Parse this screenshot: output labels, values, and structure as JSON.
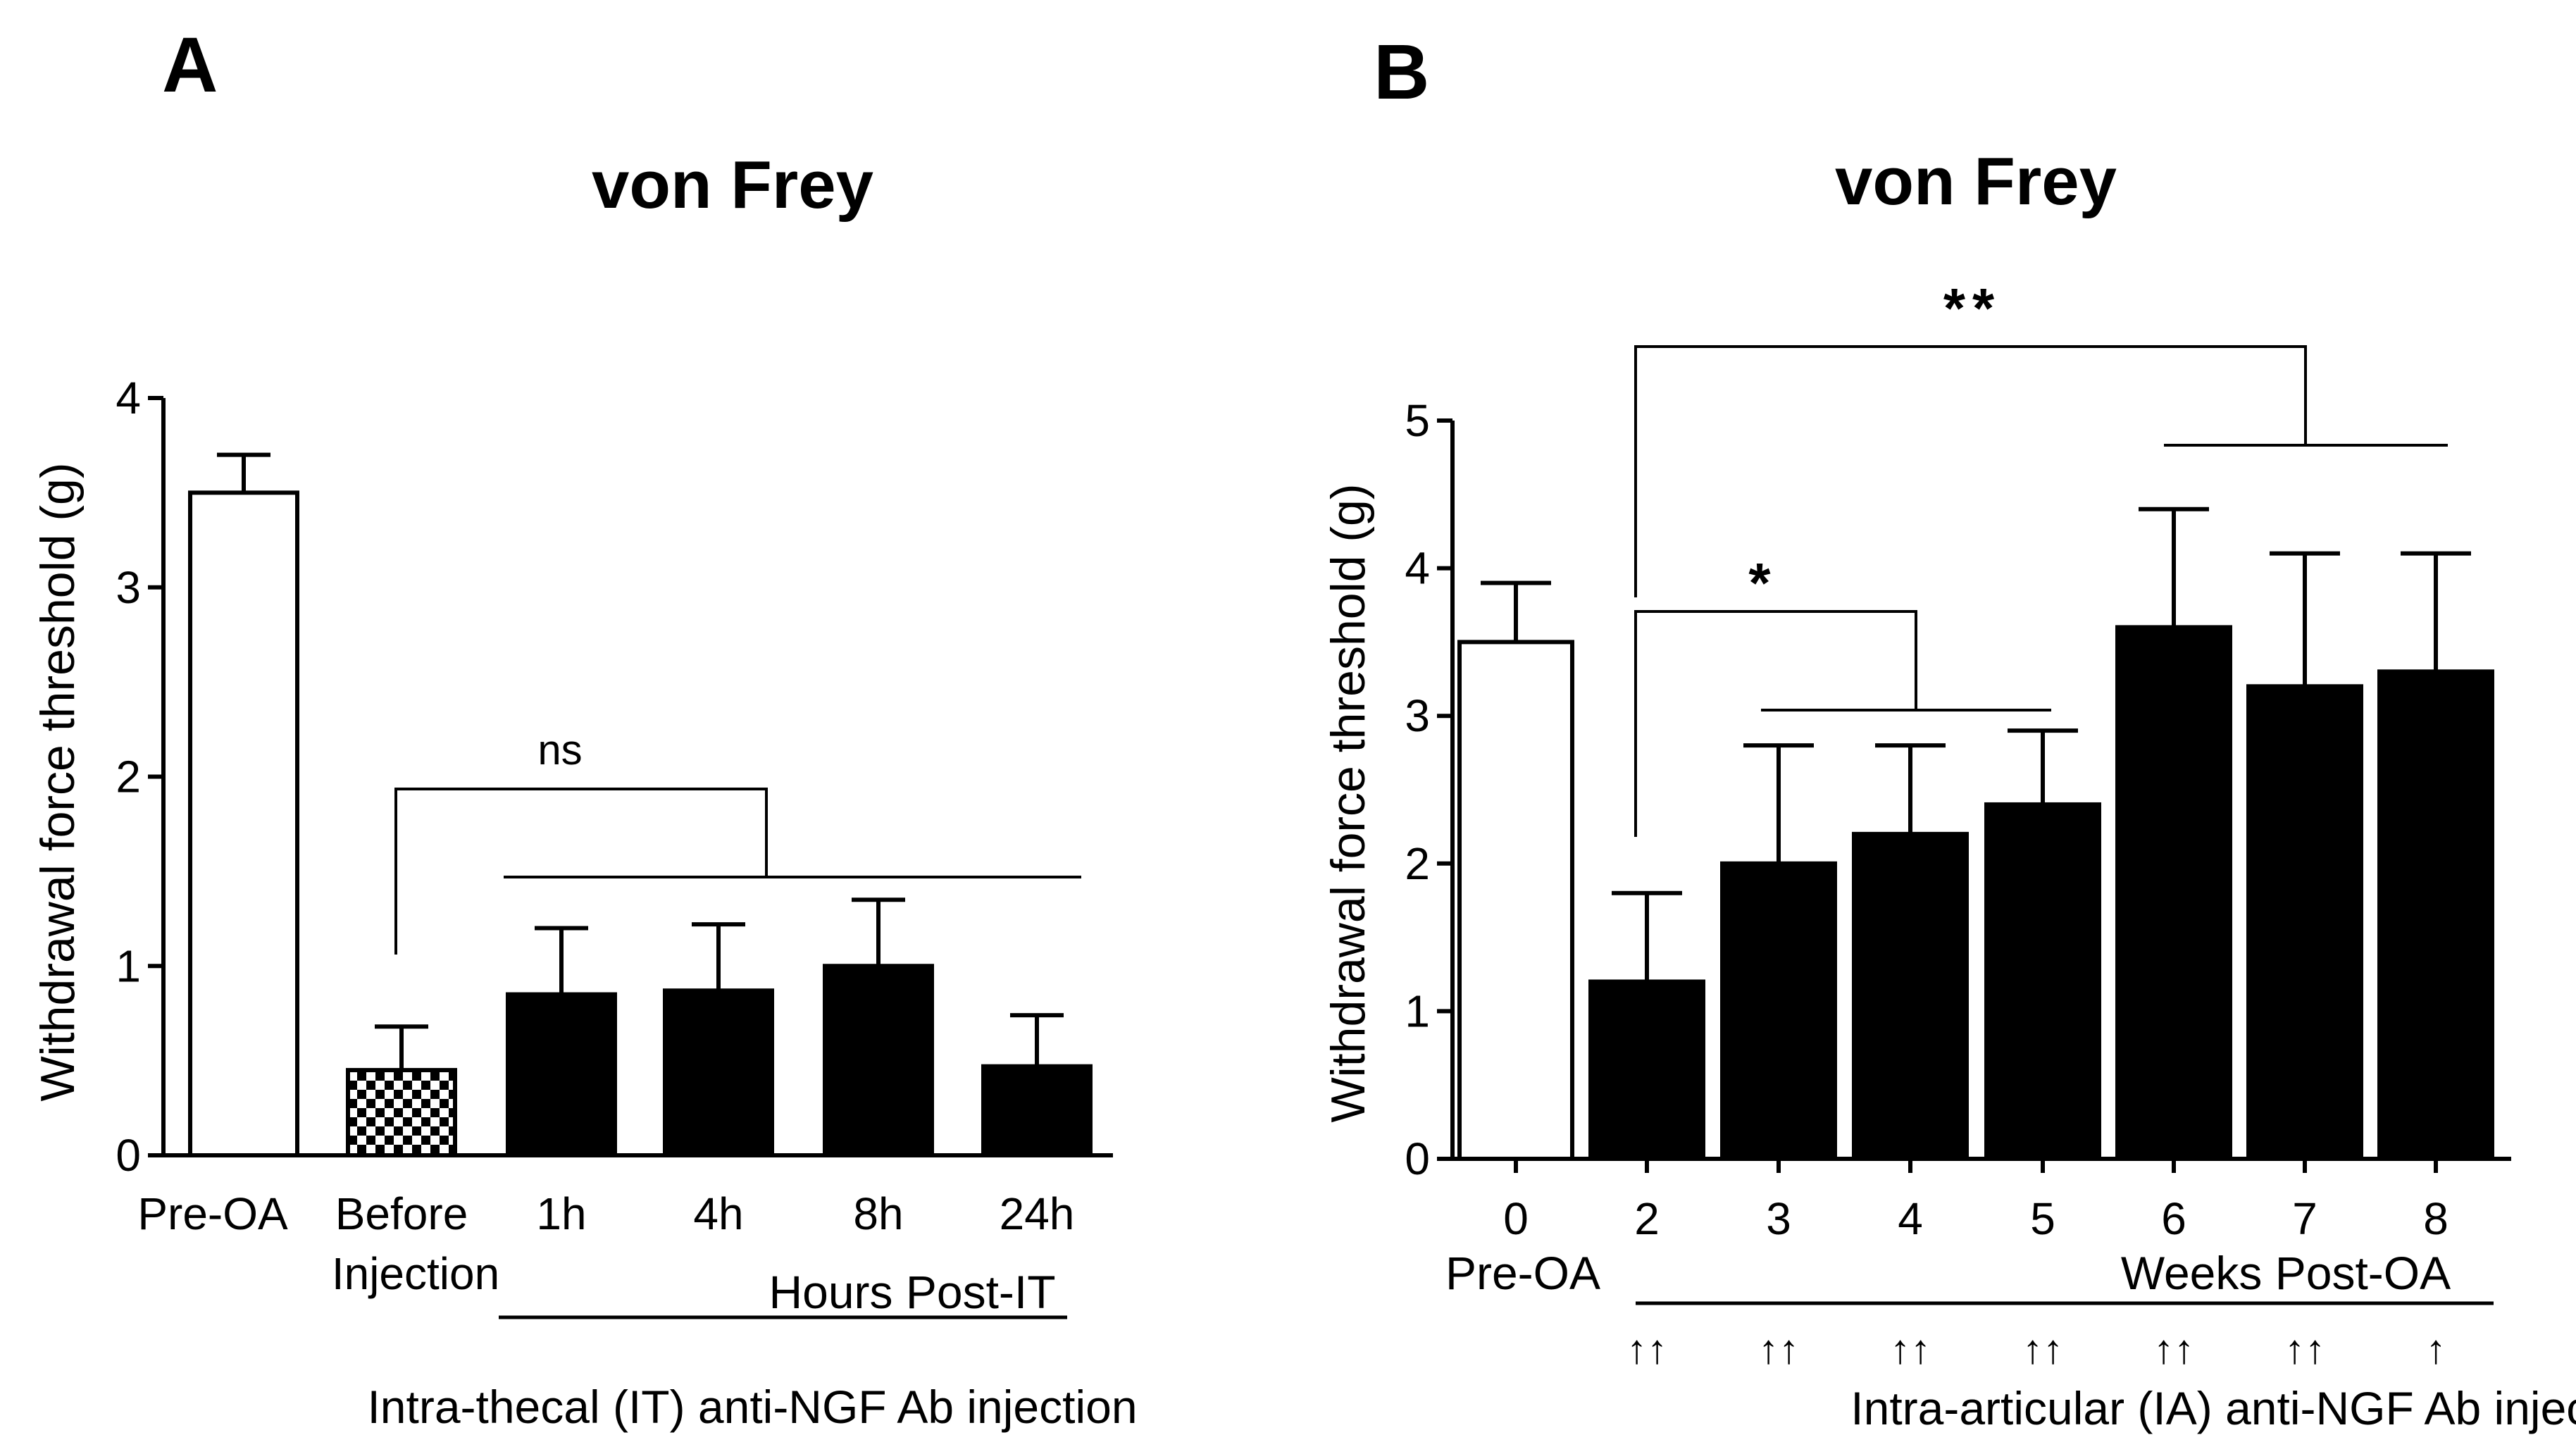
{
  "chart_data": [
    {
      "panel": "A",
      "type": "bar",
      "title": "von Frey",
      "ylabel": "Withdrawal force threshold (g)",
      "ylim": [
        0,
        4
      ],
      "yticks": [
        "0",
        "1",
        "2",
        "3",
        "4"
      ],
      "categories": [
        {
          "label": "Pre-OA",
          "value": 3.5,
          "error": 0.2,
          "fill": "#ffffff",
          "pattern": "none"
        },
        {
          "label": "Before Injection",
          "value": 0.45,
          "error": 0.23,
          "fill": "#ffffff",
          "pattern": "checkered"
        },
        {
          "label": "1h",
          "value": 0.85,
          "error": 0.35,
          "fill": "#000000",
          "pattern": "none"
        },
        {
          "label": "4h",
          "value": 0.87,
          "error": 0.35,
          "fill": "#000000",
          "pattern": "none"
        },
        {
          "label": "8h",
          "value": 1.0,
          "error": 0.35,
          "fill": "#000000",
          "pattern": "none"
        },
        {
          "label": "24h",
          "value": 0.47,
          "error": 0.27,
          "fill": "#000000",
          "pattern": "none"
        }
      ],
      "group_label": "Hours Post-IT",
      "treatment_label": "Intra-thecal (IT) anti-NGF Ab injection",
      "significance": [
        {
          "text": "ns",
          "from": "Before Injection",
          "to": "1h-24h"
        }
      ]
    },
    {
      "panel": "B",
      "type": "bar",
      "title": "von Frey",
      "ylabel": "Withdrawal force threshold (g)",
      "ylim": [
        0,
        5
      ],
      "yticks": [
        "0",
        "1",
        "2",
        "3",
        "4",
        "5"
      ],
      "categories": [
        {
          "label": "0",
          "value": 3.5,
          "error": 0.4,
          "fill": "#ffffff"
        },
        {
          "label": "2",
          "value": 1.2,
          "error": 0.6,
          "fill": "#000000"
        },
        {
          "label": "3",
          "value": 2.0,
          "error": 0.8,
          "fill": "#000000"
        },
        {
          "label": "4",
          "value": 2.2,
          "error": 0.6,
          "fill": "#000000"
        },
        {
          "label": "5",
          "value": 2.4,
          "error": 0.5,
          "fill": "#000000"
        },
        {
          "label": "6",
          "value": 3.6,
          "error": 0.8,
          "fill": "#000000"
        },
        {
          "label": "7",
          "value": 3.2,
          "error": 0.9,
          "fill": "#000000"
        },
        {
          "label": "8",
          "value": 3.3,
          "error": 0.8,
          "fill": "#000000"
        }
      ],
      "baseline_label": "Pre-OA",
      "group_label": "Weeks  Post-OA",
      "injection_arrows": [
        "↑↑",
        "↑↑",
        "↑↑",
        "↑↑",
        "↑↑",
        "↑↑",
        "↑"
      ],
      "treatment_label": "Intra-articular (IA) anti-NGF Ab injection",
      "significance": [
        {
          "text": "*",
          "from": "2",
          "to": "3-5"
        },
        {
          "text": "**",
          "from": "2",
          "to": "6-8"
        }
      ]
    }
  ]
}
